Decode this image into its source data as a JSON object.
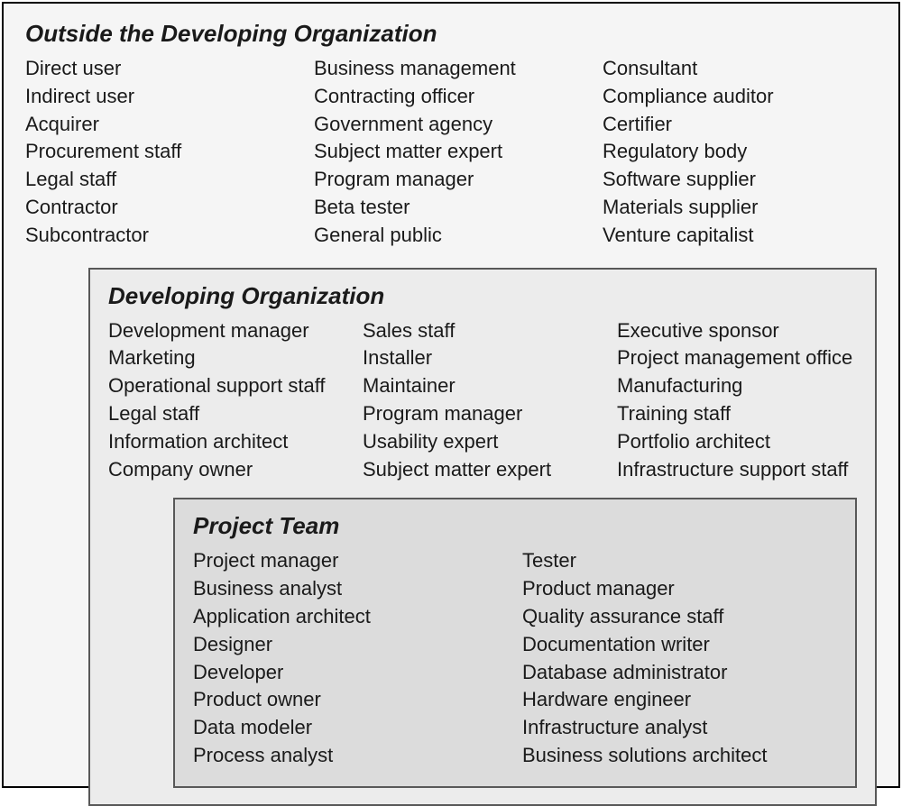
{
  "diagram": {
    "type": "nested-boxes",
    "background_outer": "#f5f5f5",
    "background_middle": "#ececec",
    "background_inner": "#dcdcdc",
    "border_color_outer": "#000000",
    "border_color_nested": "#585858",
    "title_fontsize": 26,
    "body_fontsize": 22,
    "font_family": "Segoe UI",
    "outside": {
      "title": "Outside the Developing Organization",
      "columns": 3,
      "col1": [
        "Direct user",
        "Indirect user",
        "Acquirer",
        "Procurement staff",
        "Legal staff",
        "Contractor",
        "Subcontractor"
      ],
      "col2": [
        "Business management",
        "Contracting officer",
        "Government agency",
        "Subject matter expert",
        "Program manager",
        "Beta tester",
        "General public"
      ],
      "col3": [
        "Consultant",
        "Compliance auditor",
        "Certifier",
        "Regulatory body",
        "Software supplier",
        "Materials supplier",
        "Venture capitalist"
      ]
    },
    "developing": {
      "title": "Developing Organization",
      "columns": 3,
      "col1": [
        "Development manager",
        "Marketing",
        "Operational support staff",
        "Legal staff",
        "Information architect",
        "Company owner"
      ],
      "col2": [
        "Sales staff",
        "Installer",
        "Maintainer",
        "Program manager",
        "Usability expert",
        "Subject matter expert"
      ],
      "col3": [
        "Executive sponsor",
        "Project management office",
        "Manufacturing",
        "Training staff",
        "Portfolio architect",
        "Infrastructure support staff"
      ]
    },
    "team": {
      "title": "Project Team",
      "columns": 2,
      "col1": [
        "Project manager",
        "Business analyst",
        "Application architect",
        "Designer",
        "Developer",
        "Product owner",
        "Data modeler",
        "Process analyst"
      ],
      "col2": [
        "Tester",
        "Product manager",
        "Quality assurance staff",
        "Documentation writer",
        "Database administrator",
        "Hardware engineer",
        "Infrastructure analyst",
        "Business solutions architect"
      ]
    }
  }
}
